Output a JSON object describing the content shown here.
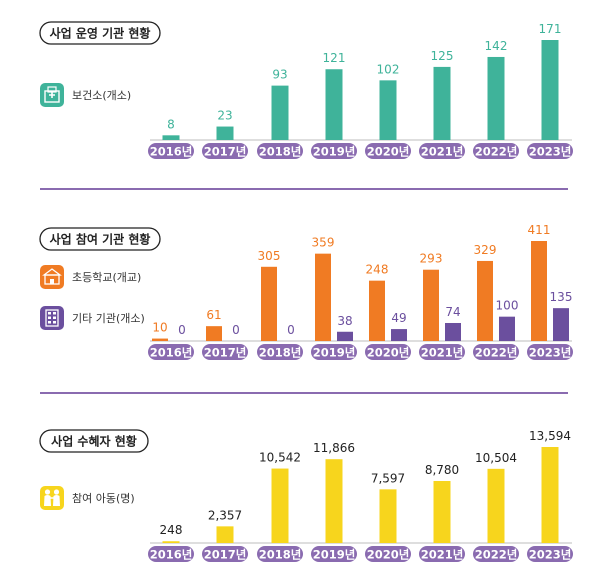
{
  "colors": {
    "teal": "#3fb39a",
    "orange": "#f07b23",
    "purple": "#6b4f9e",
    "yellow": "#f7d51d",
    "year_pill": "#8a6bb0",
    "divider": "#8a6bb0"
  },
  "chart_data": [
    {
      "type": "bar",
      "title": "사업 운영 기관 현황",
      "categories": [
        "2016년",
        "2017년",
        "2018년",
        "2019년",
        "2020년",
        "2021년",
        "2022년",
        "2023년"
      ],
      "series": [
        {
          "name": "보건소(개소)",
          "icon": "hospital-icon",
          "color": "#3fb39a",
          "values": [
            8,
            23,
            93,
            121,
            102,
            125,
            142,
            171
          ],
          "labels": [
            "8",
            "23",
            "93",
            "121",
            "102",
            "125",
            "142",
            "171"
          ]
        }
      ]
    },
    {
      "type": "bar",
      "title": "사업 참여 기관 현황",
      "categories": [
        "2016년",
        "2017년",
        "2018년",
        "2019년",
        "2020년",
        "2021년",
        "2022년",
        "2023년"
      ],
      "series": [
        {
          "name": "초등학교(개교)",
          "icon": "school-icon",
          "color": "#f07b23",
          "values": [
            10,
            61,
            305,
            359,
            248,
            293,
            329,
            411
          ],
          "labels": [
            "10",
            "61",
            "305",
            "359",
            "248",
            "293",
            "329",
            "411"
          ]
        },
        {
          "name": "기타 기관(개소)",
          "icon": "building-icon",
          "color": "#6b4f9e",
          "values": [
            0,
            0,
            0,
            38,
            49,
            74,
            100,
            135
          ],
          "labels": [
            "0",
            "0",
            "0",
            "38",
            "49",
            "74",
            "100",
            "135"
          ]
        }
      ]
    },
    {
      "type": "bar",
      "title": "사업 수혜자 현황",
      "categories": [
        "2016년",
        "2017년",
        "2018년",
        "2019년",
        "2020년",
        "2021년",
        "2022년",
        "2023년"
      ],
      "series": [
        {
          "name": "참여 아동(명)",
          "icon": "children-icon",
          "color": "#f7d51d",
          "values": [
            248,
            2357,
            10542,
            11866,
            7597,
            8780,
            10504,
            13594
          ],
          "labels": [
            "248",
            "2,357",
            "10,542",
            "11,866",
            "7,597",
            "8,780",
            "10,504",
            "13,594"
          ]
        }
      ]
    }
  ]
}
